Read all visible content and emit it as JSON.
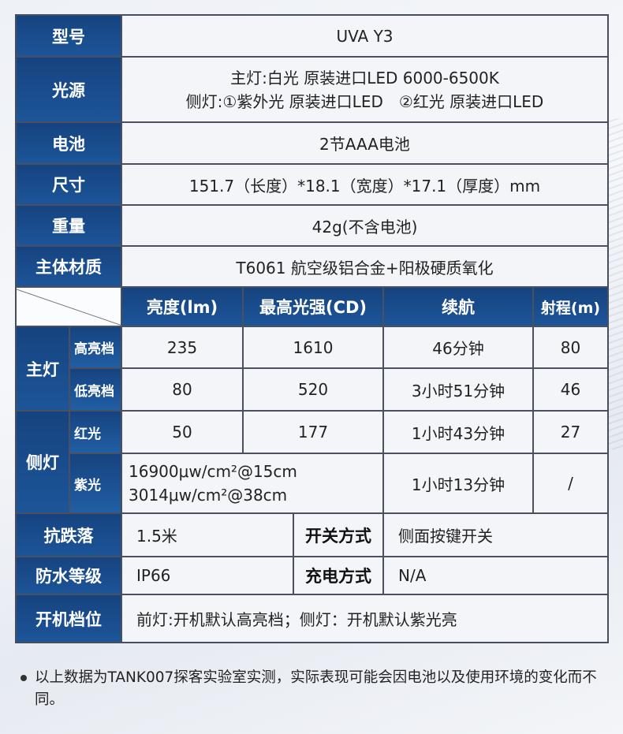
{
  "specs": {
    "model": {
      "label": "型号",
      "value": "UVA Y3"
    },
    "light_source": {
      "label": "光源",
      "line1": "主灯:白光 原装进口LED 6000-6500K",
      "line2": "侧灯:①紫外光 原装进口LED　②红光 原装进口LED"
    },
    "battery": {
      "label": "电池",
      "value": "2节AAA电池"
    },
    "size": {
      "label": "尺寸",
      "value": "151.7（长度）*18.1（宽度）*17.1（厚度）mm"
    },
    "weight": {
      "label": "重量",
      "value": "42g(不含电池)"
    },
    "material": {
      "label": "主体材质",
      "value": "T6061 航空级铝合金+阳极硬质氧化"
    }
  },
  "performance": {
    "headers": [
      "亮度(lm)",
      "最高光强(CD)",
      "续航",
      "射程(m)"
    ],
    "main_label": "主灯",
    "side_label": "侧灯",
    "rows": [
      {
        "mode": "高亮档",
        "lumens": "235",
        "cd": "1610",
        "runtime": "46分钟",
        "range": "80"
      },
      {
        "mode": "低亮档",
        "lumens": "80",
        "cd": "520",
        "runtime": "3小时51分钟",
        "range": "46"
      },
      {
        "mode": "红光",
        "lumens": "50",
        "cd": "177",
        "runtime": "1小时43分钟",
        "range": "27"
      },
      {
        "mode": "紫光",
        "irradiance1": "16900μw/cm²@15cm",
        "irradiance2": "3014μw/cm²@38cm",
        "runtime": "1小时13分钟",
        "range": "/"
      }
    ]
  },
  "extra": {
    "drop": {
      "label": "抗跌落",
      "value": "1.5米"
    },
    "switch": {
      "label": "开关方式",
      "value": "侧面按键开关"
    },
    "waterproof": {
      "label": "防水等级",
      "value": "IP66"
    },
    "charging": {
      "label": "充电方式",
      "value": "N/A"
    },
    "startup": {
      "label": "开机档位",
      "value": "前灯:开机默认高亮档；侧灯：开机默认紫光亮"
    }
  },
  "note": "以上数据为TANK007探客实验室实测，实际表现可能会因电池以及使用环境的变化而不同。"
}
